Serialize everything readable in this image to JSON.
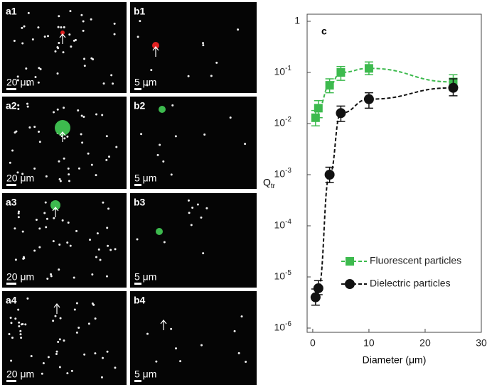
{
  "panels": [
    {
      "label": "a1",
      "scale": "20 μm"
    },
    {
      "label": "b1",
      "scale": "5 μm"
    },
    {
      "label": "a2",
      "scale": "20 μm"
    },
    {
      "label": "b2",
      "scale": "5 μm"
    },
    {
      "label": "a3",
      "scale": "20 μm"
    },
    {
      "label": "b3",
      "scale": "5 μm"
    },
    {
      "label": "a4",
      "scale": "20 μm"
    },
    {
      "label": "b4",
      "scale": "5 μm"
    }
  ],
  "chart_data": {
    "type": "scatter",
    "panel_label": "c",
    "x_label": "Diameter (μm)",
    "y_label": "Q",
    "y_label_sub": "tr",
    "xlim": [
      -1,
      30
    ],
    "xticks": [
      0,
      10,
      20,
      30
    ],
    "ylim": [
      1e-06,
      1
    ],
    "log_y": true,
    "yticks": [
      {
        "value": 1e-06,
        "label": "10",
        "exponent": "-6"
      },
      {
        "value": 1e-05,
        "label": "10",
        "exponent": "-5"
      },
      {
        "value": 0.0001,
        "label": "10",
        "exponent": "-4"
      },
      {
        "value": 0.001,
        "label": "10",
        "exponent": "-3"
      },
      {
        "value": 0.01,
        "label": "10",
        "exponent": "-2"
      },
      {
        "value": 0.1,
        "label": "10",
        "exponent": "-1"
      },
      1
    ],
    "series": [
      {
        "name": "Fluorescent particles",
        "color": "#3dba4e",
        "marker": "square",
        "x": [
          0.5,
          1,
          3,
          5,
          10,
          25
        ],
        "values": [
          0.013,
          0.02,
          0.056,
          0.1,
          0.12,
          0.065
        ],
        "ylow": [
          0.009,
          0.013,
          0.04,
          0.07,
          0.09,
          0.045
        ],
        "yhigh": [
          0.018,
          0.028,
          0.075,
          0.13,
          0.16,
          0.09
        ]
      },
      {
        "name": "Dielectric particles",
        "color": "#111111",
        "marker": "circle",
        "x": [
          0.5,
          1,
          3,
          5,
          10,
          25
        ],
        "values": [
          4e-06,
          6e-06,
          0.001,
          0.016,
          0.03,
          0.05
        ],
        "ylow": [
          2.8e-06,
          4.5e-06,
          0.0007,
          0.011,
          0.02,
          0.035
        ],
        "yhigh": [
          5.8e-06,
          8.5e-06,
          0.0014,
          0.022,
          0.04,
          0.075
        ]
      }
    ]
  }
}
